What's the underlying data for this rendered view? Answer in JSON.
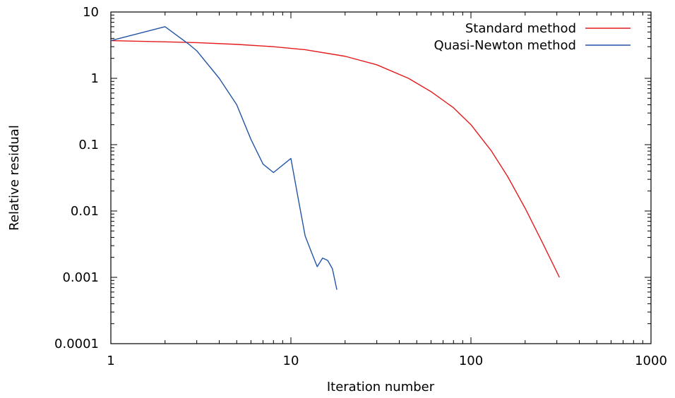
{
  "chart_data": {
    "type": "line",
    "title": "",
    "xlabel": "Iteration number",
    "ylabel": "Relative residual",
    "xscale": "log",
    "yscale": "log",
    "xlim": [
      1,
      1000
    ],
    "ylim": [
      0.0001,
      10
    ],
    "x_ticks": [
      1,
      10,
      100,
      1000
    ],
    "x_tick_labels": [
      "1",
      "10",
      "100",
      "1000"
    ],
    "y_ticks": [
      0.0001,
      0.001,
      0.01,
      0.1,
      1,
      10
    ],
    "y_tick_labels": [
      "0.0001",
      "0.001",
      "0.01",
      "0.1",
      "1",
      "10"
    ],
    "grid": false,
    "legend_position": "top-right",
    "series": [
      {
        "name": "Standard method",
        "color": "#e41a1c",
        "x": [
          1,
          2,
          3,
          5,
          8,
          12,
          20,
          30,
          45,
          60,
          80,
          100,
          130,
          160,
          200,
          250,
          310
        ],
        "y": [
          3.7,
          3.55,
          3.45,
          3.25,
          3.0,
          2.7,
          2.15,
          1.6,
          1.0,
          0.63,
          0.36,
          0.2,
          0.08,
          0.033,
          0.011,
          0.0033,
          0.001
        ]
      },
      {
        "name": "Quasi-Newton method",
        "color": "#2255a4",
        "x": [
          1,
          2,
          2.7,
          3,
          4,
          5,
          6,
          7,
          8,
          10,
          11,
          12,
          13,
          14,
          15,
          16,
          17,
          18
        ],
        "y": [
          3.7,
          6.0,
          3.3,
          2.6,
          1.0,
          0.4,
          0.12,
          0.051,
          0.038,
          0.062,
          0.015,
          0.0042,
          0.0024,
          0.00145,
          0.00195,
          0.0018,
          0.00135,
          0.00065
        ]
      }
    ]
  }
}
